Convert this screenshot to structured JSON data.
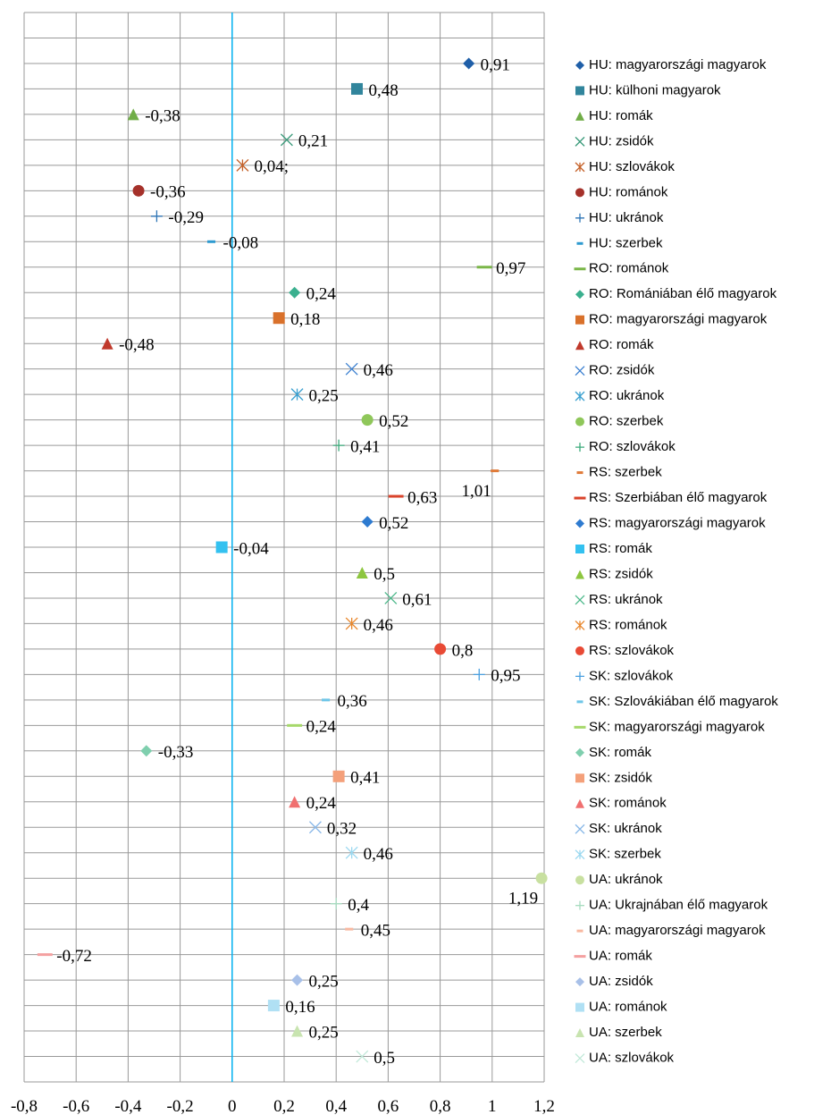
{
  "chart_data": {
    "type": "dotplot",
    "xlim": [
      -0.8,
      1.2
    ],
    "xticks": [
      {
        "value": -0.8,
        "label": "-0,8"
      },
      {
        "value": -0.6,
        "label": "-0,6"
      },
      {
        "value": -0.4,
        "label": "-0,4"
      },
      {
        "value": -0.2,
        "label": "-0,2"
      },
      0,
      {
        "value": 0.2,
        "label": "0,2"
      },
      {
        "value": 0.4,
        "label": "0,4"
      },
      {
        "value": 0.6,
        "label": "0,6"
      },
      {
        "value": 0.8,
        "label": "0,8"
      },
      1,
      {
        "value": 1.2,
        "label": "1,2"
      }
    ],
    "grid": true,
    "zero_line_color": "#00b0f0",
    "series": [
      {
        "name": "HU: magyarországi magyarok",
        "color": "#1f5fa8",
        "marker": "diamond",
        "values": [
          0.91
        ],
        "value_labels": [
          "0,91"
        ]
      },
      {
        "name": "HU: külhoni magyarok",
        "color": "#31859c",
        "marker": "square",
        "values": [
          0.48
        ],
        "value_labels": [
          "0,48"
        ]
      },
      {
        "name": "HU: romák",
        "color": "#70ad47",
        "marker": "triangle",
        "values": [
          -0.38
        ],
        "value_labels": [
          "-0,38"
        ]
      },
      {
        "name": "HU: zsidók",
        "color": "#3a9a7a",
        "marker": "x",
        "values": [
          0.21
        ],
        "value_labels": [
          "0,21"
        ]
      },
      {
        "name": "HU: szlovákok",
        "color": "#c5622a",
        "marker": "star",
        "values": [
          0.04
        ],
        "value_labels": [
          "0,04;"
        ]
      },
      {
        "name": "HU: románok",
        "color": "#a5312a",
        "marker": "circle",
        "values": [
          -0.36
        ],
        "value_labels": [
          "-0,36"
        ]
      },
      {
        "name": "HU: ukránok",
        "color": "#2e75b6",
        "marker": "plus",
        "values": [
          -0.29
        ],
        "value_labels": [
          "-0,29"
        ]
      },
      {
        "name": "HU: szerbek",
        "color": "#2e9ad0",
        "marker": "dash",
        "values": [
          -0.08
        ],
        "value_labels": [
          "-0,08"
        ]
      },
      {
        "name": "RO: románok",
        "color": "#7ab648",
        "marker": "longdash",
        "values": [
          0.97
        ],
        "value_labels": [
          "0,97"
        ]
      },
      {
        "name": " RO: Romániában élő magyarok",
        "color": "#3bb08f",
        "marker": "diamond",
        "values": [
          0.24
        ],
        "value_labels": [
          "0,24"
        ]
      },
      {
        "name": "RO: magyarországi magyarok",
        "color": "#d9712b",
        "marker": "square",
        "values": [
          0.18
        ],
        "value_labels": [
          "0,18"
        ]
      },
      {
        "name": "RO: romák",
        "color": "#c0392b",
        "marker": "triangle",
        "values": [
          -0.48
        ],
        "value_labels": [
          "-0,48"
        ]
      },
      {
        "name": "RO: zsidók",
        "color": "#3a7fd0",
        "marker": "x",
        "values": [
          0.46
        ],
        "value_labels": [
          "0,46"
        ]
      },
      {
        "name": "RO: ukránok",
        "color": "#3aa0d0",
        "marker": "star",
        "values": [
          0.25
        ],
        "value_labels": [
          "0,25"
        ]
      },
      {
        "name": "RO: szerbek",
        "color": "#8fc75a",
        "marker": "circle",
        "values": [
          0.52
        ],
        "value_labels": [
          "0,52"
        ]
      },
      {
        "name": "RO: szlovákok",
        "color": "#3aaa7a",
        "marker": "plus",
        "values": [
          0.41
        ],
        "value_labels": [
          "0,41"
        ]
      },
      {
        "name": "RS: szerbek",
        "color": "#e07b39",
        "marker": "dash",
        "values": [
          1.01
        ],
        "value_labels": [
          "1,01"
        ]
      },
      {
        "name": "RS: Szerbiában élő magyarok",
        "color": "#d9432b",
        "marker": "longdash",
        "values": [
          0.63
        ],
        "value_labels": [
          "0,63"
        ]
      },
      {
        "name": "RS: magyarországi magyarok",
        "color": "#2e7bd0",
        "marker": "diamond",
        "values": [
          0.52
        ],
        "value_labels": [
          "0,52"
        ]
      },
      {
        "name": "RS: romák",
        "color": "#33c1f0",
        "marker": "square",
        "values": [
          -0.04
        ],
        "value_labels": [
          "-0,04"
        ]
      },
      {
        "name": "RS: zsidók",
        "color": "#8dc63f",
        "marker": "triangle",
        "values": [
          0.5
        ],
        "value_labels": [
          "0,5"
        ]
      },
      {
        "name": "RS: ukránok",
        "color": "#4cb88a",
        "marker": "x",
        "values": [
          0.61
        ],
        "value_labels": [
          "0,61"
        ]
      },
      {
        "name": "RS: románok",
        "color": "#e8872c",
        "marker": "star",
        "values": [
          0.46
        ],
        "value_labels": [
          "0,46"
        ]
      },
      {
        "name": "RS: szlovákok",
        "color": "#e84a35",
        "marker": "circle",
        "values": [
          0.8
        ],
        "value_labels": [
          "0,8"
        ]
      },
      {
        "name": "SK: szlovákok",
        "color": "#4aa0e0",
        "marker": "plus",
        "values": [
          0.95
        ],
        "value_labels": [
          "0,95"
        ]
      },
      {
        "name": "SK: Szlovákiában élő magyarok",
        "color": "#6ec6e8",
        "marker": "dash",
        "values": [
          0.36
        ],
        "value_labels": [
          "0,36"
        ]
      },
      {
        "name": "SK: magyarországi magyarok",
        "color": "#a6d86a",
        "marker": "longdash",
        "values": [
          0.24
        ],
        "value_labels": [
          "0,24"
        ]
      },
      {
        "name": "SK: romák",
        "color": "#7fcfae",
        "marker": "diamond",
        "values": [
          -0.33
        ],
        "value_labels": [
          "-0,33"
        ]
      },
      {
        "name": "SK: zsidók",
        "color": "#f4a07a",
        "marker": "square",
        "values": [
          0.41
        ],
        "value_labels": [
          "0,41"
        ]
      },
      {
        "name": "SK: románok",
        "color": "#f07070",
        "marker": "triangle",
        "values": [
          0.24
        ],
        "value_labels": [
          "0,24"
        ]
      },
      {
        "name": "SK: ukránok",
        "color": "#8ab8e8",
        "marker": "x",
        "values": [
          0.32
        ],
        "value_labels": [
          "0,32"
        ]
      },
      {
        "name": "SK: szerbek",
        "color": "#9ad8f0",
        "marker": "star",
        "values": [
          0.46
        ],
        "value_labels": [
          "0,46"
        ]
      },
      {
        "name": "UA: ukránok",
        "color": "#c8e0a0",
        "marker": "circle",
        "values": [
          1.19
        ],
        "value_labels": [
          "1,19"
        ]
      },
      {
        "name": "UA: Ukrajnában élő magyarok",
        "color": "#a8dcc0",
        "marker": "plus",
        "values": [
          0.4
        ],
        "value_labels": [
          "0,4"
        ]
      },
      {
        "name": "UA: magyarországi magyarok",
        "color": "#f8b8a0",
        "marker": "dash",
        "values": [
          0.45
        ],
        "value_labels": [
          "0,45"
        ]
      },
      {
        "name": " UA: romák",
        "color": "#f4a0a0",
        "marker": "longdash",
        "values": [
          -0.72
        ],
        "value_labels": [
          "-0,72"
        ]
      },
      {
        "name": "UA: zsidók",
        "color": "#a8c0e8",
        "marker": "diamond",
        "values": [
          0.25
        ],
        "value_labels": [
          "0,25"
        ]
      },
      {
        "name": "UA: románok",
        "color": "#b0e0f4",
        "marker": "square",
        "values": [
          0.16
        ],
        "value_labels": [
          "0,16"
        ]
      },
      {
        "name": "UA: szerbek",
        "color": "#c8e4b0",
        "marker": "triangle",
        "values": [
          0.25
        ],
        "value_labels": [
          "0,25"
        ]
      },
      {
        "name": "UA: szlovákok",
        "color": "#c0e8d8",
        "marker": "x",
        "values": [
          0.5
        ],
        "value_labels": [
          "0,5"
        ]
      }
    ]
  }
}
